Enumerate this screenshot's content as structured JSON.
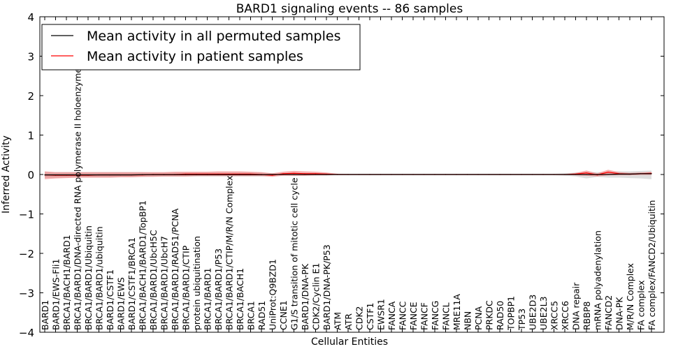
{
  "chart_data": {
    "type": "line",
    "title": "BARD1 signaling events -- 86 samples",
    "xlabel": "Cellular Entities",
    "ylabel": "Inferred Activity",
    "ylim": [
      -4,
      4
    ],
    "yticks": [
      "4",
      "3",
      "2",
      "1",
      "0",
      "−1",
      "−2",
      "−3",
      "−4"
    ],
    "ytick_values": [
      4,
      3,
      2,
      1,
      0,
      -1,
      -2,
      -3,
      -4
    ],
    "legend_position": "top-left",
    "categories": [
      "BARD1",
      "BARD1/EWS-Fli1",
      "BRCA1/BACH1/BARD1",
      "BRCA1/BARD1/DNA-directed RNA polymerase II holoenzyme",
      "BRCA1/BARD1/Ubiquitin",
      "BRCA1/BARD1/ubiquitin",
      "BARD1/CSTF1",
      "BARD1/EWS",
      "BARD1/CSTF1/BRCA1",
      "BRCA1/BACH1/BARD1/TopBP1",
      "BRCA1/BARD1/UbcH5C",
      "BRCA1/BARD1/UbcH7",
      "BRCA1/BARD1/RAD51/PCNA",
      "BRCA1/BARD1/CTIP",
      "protein ubiquitination",
      "BRCA1/BARD1",
      "BRCA1/BARD1/P53",
      "BRCA1/BARD1/CTIP/M/R/N Complex",
      "BRCA1/BACH1",
      "BRCA1",
      "RAD51",
      "UniProt:Q9BZD1",
      "CCNE1",
      "G1/S transition of mitotic cell cycle",
      "BARD1/DNA-PK",
      "CDK2/Cyclin E1",
      "BARD1/DNA-PK/P53",
      "ATM",
      "ATR",
      "CDK2",
      "CSTF1",
      "EWSR1",
      "FANCA",
      "FANCC",
      "FANCE",
      "FANCF",
      "FANCG",
      "FANCL",
      "MRE11A",
      "NBN",
      "PCNA",
      "PRKDC",
      "RAD50",
      "TOPBP1",
      "TP53",
      "UBE2D3",
      "UBE2L3",
      "XRCC5",
      "XRCC6",
      "DNA repair",
      "RBBP8",
      "mRNA polyadenylation",
      "FANCD2",
      "DNA-PK",
      "M/R/N Complex",
      "FA complex",
      "FA complex/FANCD2/Ubiquitin"
    ],
    "series": [
      {
        "name": "Mean activity in all permuted samples",
        "color": "#000000",
        "values": [
          -0.01,
          -0.01,
          -0.01,
          -0.01,
          -0.01,
          -0.01,
          -0.01,
          -0.01,
          -0.01,
          -0.005,
          -0.005,
          -0.005,
          -0.005,
          -0.005,
          -0.005,
          -0.005,
          -0.005,
          -0.005,
          -0.005,
          -0.005,
          -0.005,
          0,
          0,
          0,
          0,
          0,
          0,
          0,
          0,
          0,
          0,
          0,
          0,
          0,
          0,
          0,
          0,
          0,
          0,
          0,
          0,
          0,
          0,
          0,
          0,
          0,
          0,
          0,
          0,
          0,
          0,
          0,
          0,
          0.01,
          0.01,
          0.02,
          0.02
        ],
        "band_lower": [
          -0.08,
          -0.08,
          -0.07,
          -0.07,
          -0.07,
          -0.07,
          -0.07,
          -0.06,
          -0.06,
          -0.06,
          -0.05,
          -0.05,
          -0.05,
          -0.05,
          -0.05,
          -0.05,
          -0.05,
          -0.05,
          -0.05,
          -0.05,
          -0.05,
          -0.03,
          -0.02,
          -0.03,
          -0.03,
          -0.03,
          -0.03,
          -0.02,
          -0.02,
          -0.02,
          -0.02,
          -0.02,
          -0.02,
          -0.02,
          -0.02,
          -0.02,
          -0.02,
          -0.02,
          -0.02,
          -0.02,
          -0.02,
          -0.02,
          -0.02,
          -0.02,
          -0.02,
          -0.02,
          -0.02,
          -0.02,
          -0.03,
          -0.05,
          -0.1,
          -0.06,
          -0.08,
          -0.08,
          -0.09,
          -0.1,
          -0.12
        ],
        "band_upper": [
          0.06,
          0.06,
          0.06,
          0.06,
          0.06,
          0.06,
          0.06,
          0.06,
          0.06,
          0.06,
          0.05,
          0.05,
          0.05,
          0.05,
          0.05,
          0.05,
          0.05,
          0.05,
          0.05,
          0.05,
          0.05,
          0.03,
          0.02,
          0.03,
          0.03,
          0.03,
          0.03,
          0.02,
          0.02,
          0.02,
          0.02,
          0.02,
          0.02,
          0.02,
          0.02,
          0.02,
          0.02,
          0.02,
          0.02,
          0.02,
          0.02,
          0.02,
          0.02,
          0.02,
          0.02,
          0.02,
          0.02,
          0.02,
          0.03,
          0.05,
          0.06,
          0.06,
          0.06,
          0.08,
          0.08,
          0.09,
          0.1
        ]
      },
      {
        "name": "Mean activity in patient samples",
        "color": "#ff0000",
        "values": [
          -0.01,
          -0.02,
          -0.02,
          -0.02,
          -0.02,
          -0.01,
          -0.01,
          -0.01,
          -0.01,
          -0.01,
          0,
          0,
          0,
          0.01,
          0.01,
          0.01,
          0.01,
          0.01,
          0.01,
          0.01,
          0,
          -0.02,
          0.02,
          0.03,
          0.02,
          0.02,
          0.01,
          0,
          0,
          0,
          0,
          0,
          0,
          0,
          0,
          0,
          0,
          0,
          0,
          0,
          0,
          0,
          0,
          0,
          0,
          0,
          0,
          0,
          0,
          0.01,
          0.04,
          -0.01,
          0.06,
          0.02,
          0.01,
          0.02,
          0.03
        ],
        "band_lower": [
          -0.12,
          -0.1,
          -0.09,
          -0.08,
          -0.08,
          -0.08,
          -0.08,
          -0.07,
          -0.07,
          -0.06,
          -0.06,
          -0.05,
          -0.05,
          -0.05,
          -0.04,
          -0.04,
          -0.04,
          -0.04,
          -0.04,
          -0.04,
          -0.04,
          -0.06,
          -0.03,
          -0.03,
          -0.03,
          -0.02,
          -0.02,
          -0.01,
          -0.01,
          -0.01,
          -0.01,
          -0.01,
          -0.01,
          -0.01,
          -0.01,
          -0.01,
          -0.01,
          -0.01,
          -0.01,
          -0.01,
          -0.01,
          -0.01,
          -0.01,
          -0.01,
          -0.01,
          -0.01,
          -0.01,
          -0.01,
          -0.01,
          -0.02,
          -0.03,
          -0.05,
          -0.02,
          -0.02,
          -0.02,
          -0.01,
          -0.01
        ],
        "band_upper": [
          0.08,
          0.06,
          0.06,
          0.06,
          0.06,
          0.06,
          0.06,
          0.06,
          0.06,
          0.06,
          0.06,
          0.06,
          0.07,
          0.07,
          0.07,
          0.07,
          0.08,
          0.08,
          0.08,
          0.07,
          0.06,
          0.03,
          0.07,
          0.09,
          0.08,
          0.07,
          0.05,
          0.02,
          0.01,
          0.01,
          0.01,
          0.01,
          0.01,
          0.01,
          0.01,
          0.01,
          0.01,
          0.01,
          0.01,
          0.01,
          0.01,
          0.01,
          0.01,
          0.01,
          0.01,
          0.01,
          0.01,
          0.01,
          0.01,
          0.04,
          0.1,
          0.03,
          0.12,
          0.06,
          0.04,
          0.05,
          0.06
        ]
      }
    ]
  }
}
